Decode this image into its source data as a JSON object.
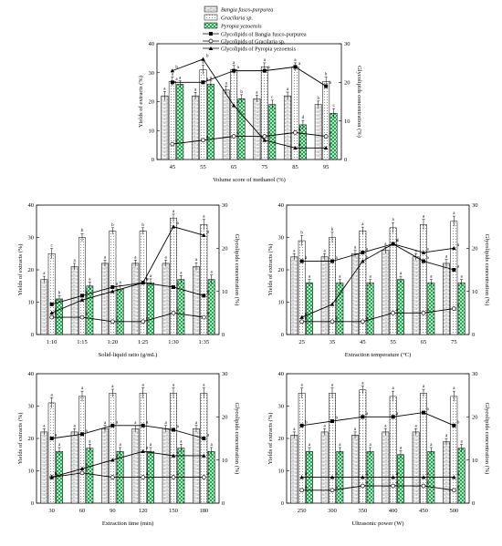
{
  "figure": {
    "legend": [
      {
        "label": "Bangia fusco-purpurea",
        "kind": "bar",
        "pattern": "brick"
      },
      {
        "label": "Gracilaria sp.",
        "kind": "bar",
        "pattern": "dots"
      },
      {
        "label": "Pyropia yezoensis",
        "kind": "bar",
        "pattern": "green-check"
      },
      {
        "label": "Glycolipids of Bangia fusco-purpurea",
        "kind": "line",
        "marker": "square"
      },
      {
        "label": "Glycolipids of Gracilaria sp.",
        "kind": "line",
        "marker": "circle"
      },
      {
        "label": "Glycolipids of Pyropia yezoensis",
        "kind": "line",
        "marker": "triangle"
      }
    ],
    "colors": {
      "bar_brick": "#ffffff",
      "bar_dots": "#ffffff",
      "bar_green": "#1aa84c",
      "line": "#000000",
      "axis": "#000000"
    }
  },
  "chart_data": [
    {
      "type": "bar",
      "panel": "methanol",
      "categories": [
        "45",
        "55",
        "65",
        "75",
        "85",
        "95"
      ],
      "xlabel": "Volume score of methanol (%)",
      "ylabel": "Yields of extracts (%)",
      "y2label": "Glycolipids concentration (%)",
      "ylim": [
        0,
        40
      ],
      "y2lim": [
        0,
        30
      ],
      "series": [
        {
          "name": "Bangia fusco-purpurea",
          "axis": "left",
          "kind": "bar",
          "values": [
            22,
            22,
            24,
            21,
            22,
            19
          ],
          "errors": [
            1.5,
            1.2,
            1.4,
            1.2,
            1.3,
            1.2
          ],
          "labels": [
            "a",
            "a",
            "a",
            "a",
            "a",
            "b"
          ]
        },
        {
          "name": "Gracilaria sp.",
          "axis": "left",
          "kind": "bar",
          "values": [
            27,
            31,
            31,
            32,
            32,
            27
          ],
          "errors": [
            1.5,
            1.6,
            1.5,
            1.4,
            1.4,
            1.5
          ],
          "labels": [
            "a",
            "a",
            "a",
            "a",
            "a",
            "b"
          ]
        },
        {
          "name": "Pyropia yezoensis",
          "axis": "left",
          "kind": "bar",
          "values": [
            26,
            26,
            21,
            19,
            12,
            16
          ],
          "errors": [
            1.2,
            1.2,
            1.4,
            1.5,
            1.5,
            1.6
          ],
          "labels": [
            "a",
            "a",
            "b",
            "c",
            "d",
            "c"
          ]
        },
        {
          "name": "Glycolipids of Bangia fusco-purpurea",
          "axis": "right",
          "kind": "line",
          "marker": "square",
          "values": [
            20,
            20,
            23,
            23,
            24,
            19
          ],
          "labels": [
            "a",
            "a",
            "a",
            "a",
            "a",
            "b"
          ]
        },
        {
          "name": "Glycolipids of Gracilaria sp.",
          "axis": "right",
          "kind": "line",
          "marker": "circle",
          "values": [
            4,
            5,
            6,
            6,
            7,
            6
          ],
          "labels": [
            "a",
            "a",
            "a",
            "a",
            "a",
            "a"
          ]
        },
        {
          "name": "Glycolipids of Pyropia yezoensis",
          "axis": "right",
          "kind": "line",
          "marker": "triangle",
          "values": [
            23,
            26,
            14,
            5,
            3,
            3
          ],
          "labels": [
            "b",
            "b",
            "c",
            "d",
            "e",
            "e"
          ]
        }
      ]
    },
    {
      "type": "bar",
      "panel": "ratio",
      "categories": [
        "1:10",
        "1:15",
        "1:20",
        "1:25",
        "1:30",
        "1:35"
      ],
      "xlabel": "Solid-liquid ratio (g/mL)",
      "ylabel": "Yields of extracts (%)",
      "y2label": "Glycolipids concentration (%)",
      "ylim": [
        0,
        40
      ],
      "y2lim": [
        0,
        30
      ],
      "series": [
        {
          "name": "Bangia fusco-purpurea",
          "axis": "left",
          "kind": "bar",
          "values": [
            17,
            21,
            22,
            22,
            22,
            21
          ],
          "errors": [
            1.0,
            1.0,
            1.0,
            1.0,
            1.0,
            1.2
          ],
          "labels": [
            "a",
            "a",
            "a",
            "a",
            "a",
            "a"
          ]
        },
        {
          "name": "Gracilaria sp.",
          "axis": "left",
          "kind": "bar",
          "values": [
            25,
            30,
            32,
            32,
            36,
            34
          ],
          "errors": [
            1.6,
            1.2,
            1.0,
            1.0,
            1.2,
            1.6
          ],
          "labels": [
            "c",
            "b",
            "b",
            "b",
            "a",
            "a"
          ]
        },
        {
          "name": "Pyropia yezoensis",
          "axis": "left",
          "kind": "bar",
          "values": [
            11,
            15,
            14,
            16,
            17,
            17
          ],
          "errors": [
            1.0,
            1.2,
            1.2,
            1.2,
            1.2,
            1.4
          ],
          "labels": [
            "b",
            "a",
            "a",
            "a",
            "a",
            "a"
          ]
        },
        {
          "name": "Glycolipids of Bangia fusco-purpurea",
          "axis": "right",
          "kind": "line",
          "marker": "square",
          "values": [
            7,
            9,
            11,
            12,
            11,
            9
          ],
          "labels": [
            "c",
            "b",
            "a",
            "a",
            "a",
            "b"
          ]
        },
        {
          "name": "Glycolipids of Gracilaria sp.",
          "axis": "right",
          "kind": "line",
          "marker": "circle",
          "values": [
            4,
            4,
            3,
            3,
            5,
            4
          ],
          "labels": [
            "b",
            "b",
            "c",
            "c",
            "a",
            "b"
          ]
        },
        {
          "name": "Glycolipids of Pyropia yezoensis",
          "axis": "right",
          "kind": "line",
          "marker": "triangle",
          "values": [
            5,
            8,
            10,
            12,
            25,
            23
          ],
          "labels": [
            "c",
            "c",
            "c",
            "b",
            "a",
            "a"
          ]
        }
      ]
    },
    {
      "type": "bar",
      "panel": "temperature",
      "categories": [
        "25",
        "35",
        "45",
        "55",
        "65",
        "75"
      ],
      "xlabel": "Extraction temperature (°C)",
      "ylabel": "Yields of extracts (%)",
      "y2label": "Glycolipids concentration (%)",
      "ylim": [
        0,
        40
      ],
      "y2lim": [
        0,
        30
      ],
      "series": [
        {
          "name": "Bangia fusco-purpurea",
          "axis": "left",
          "kind": "bar",
          "values": [
            24,
            24,
            25,
            26,
            24,
            22
          ],
          "errors": [
            1.0,
            1.0,
            1.0,
            1.0,
            1.0,
            1.2
          ],
          "labels": [
            "a",
            "a",
            "a",
            "a",
            "a",
            "a"
          ]
        },
        {
          "name": "Gracilaria sp.",
          "axis": "left",
          "kind": "bar",
          "values": [
            29,
            30,
            32,
            33,
            34,
            35
          ],
          "errors": [
            1.6,
            1.6,
            1.2,
            1.6,
            1.6,
            1.6
          ],
          "labels": [
            "b",
            "b",
            "a",
            "a",
            "a",
            "a"
          ]
        },
        {
          "name": "Pyropia yezoensis",
          "axis": "left",
          "kind": "bar",
          "values": [
            16,
            16,
            16,
            17,
            16,
            16
          ],
          "errors": [
            1.0,
            1.0,
            1.0,
            1.0,
            1.0,
            1.0
          ],
          "labels": [
            "a",
            "a",
            "a",
            "a",
            "a",
            "a"
          ]
        },
        {
          "name": "Glycolipids of Bangia fusco-purpurea",
          "axis": "right",
          "kind": "line",
          "marker": "square",
          "values": [
            17,
            17,
            19,
            21,
            17,
            15
          ],
          "labels": [
            "a",
            "a",
            "a",
            "a",
            "a",
            "a"
          ]
        },
        {
          "name": "Glycolipids of Gracilaria sp.",
          "axis": "right",
          "kind": "line",
          "marker": "circle",
          "values": [
            3,
            3,
            3,
            5,
            5,
            6
          ],
          "labels": [
            "b",
            "b",
            "b",
            "a",
            "a",
            "a"
          ]
        },
        {
          "name": "Glycolipids of Pyropia yezoensis",
          "axis": "right",
          "kind": "line",
          "marker": "triangle",
          "values": [
            4,
            7,
            17,
            21,
            19,
            20
          ],
          "labels": [
            "e",
            "c",
            "b",
            "d",
            "a",
            "a"
          ]
        }
      ]
    },
    {
      "type": "bar",
      "panel": "time",
      "categories": [
        "30",
        "60",
        "90",
        "120",
        "150",
        "180"
      ],
      "xlabel": "Extraction time (min)",
      "ylabel": "Yields of extracts (%)",
      "y2label": "Glycolipids concentration (%)",
      "ylim": [
        0,
        40
      ],
      "y2lim": [
        0,
        30
      ],
      "series": [
        {
          "name": "Bangia fusco-purpurea",
          "axis": "left",
          "kind": "bar",
          "values": [
            22,
            22,
            23,
            23,
            23,
            23
          ],
          "errors": [
            1.0,
            1.0,
            1.0,
            1.0,
            1.0,
            1.0
          ],
          "labels": [
            "a",
            "a",
            "a",
            "a",
            "a",
            "a"
          ]
        },
        {
          "name": "Gracilaria sp.",
          "axis": "left",
          "kind": "bar",
          "values": [
            31,
            33,
            34,
            34,
            34,
            34
          ],
          "errors": [
            1.6,
            1.6,
            1.2,
            1.6,
            1.6,
            1.6
          ],
          "labels": [
            "a",
            "a",
            "a",
            "a",
            "a",
            "a"
          ]
        },
        {
          "name": "Pyropia yezoensis",
          "axis": "left",
          "kind": "bar",
          "values": [
            16,
            17,
            16,
            16,
            17,
            16
          ],
          "errors": [
            1.2,
            1.2,
            1.2,
            1.2,
            1.2,
            1.2
          ],
          "labels": [
            "a",
            "a",
            "a",
            "a",
            "a",
            "a"
          ]
        },
        {
          "name": "Glycolipids of Bangia fusco-purpurea",
          "axis": "right",
          "kind": "line",
          "marker": "square",
          "values": [
            15,
            16,
            18,
            18,
            17,
            15
          ],
          "labels": [
            "a",
            "a",
            "a",
            "a",
            "a",
            "a"
          ]
        },
        {
          "name": "Glycolipids of Gracilaria sp.",
          "axis": "right",
          "kind": "line",
          "marker": "circle",
          "values": [
            6,
            7,
            6,
            6,
            6,
            6
          ],
          "labels": [
            "a",
            "a",
            "a",
            "a",
            "a",
            "a"
          ]
        },
        {
          "name": "Glycolipids of Pyropia yezoensis",
          "axis": "right",
          "kind": "line",
          "marker": "triangle",
          "values": [
            6,
            8,
            10,
            12,
            11,
            11
          ],
          "labels": [
            "b",
            "b",
            "a",
            "a",
            "a",
            "a"
          ]
        }
      ]
    },
    {
      "type": "bar",
      "panel": "power",
      "categories": [
        "250",
        "300",
        "350",
        "400",
        "450",
        "500"
      ],
      "xlabel": "Ultrasonic power (W)",
      "ylabel": "Yields of extracts (%)",
      "y2label": "Glycolipids concentration (%)",
      "ylim": [
        0,
        40
      ],
      "y2lim": [
        0,
        30
      ],
      "series": [
        {
          "name": "Bangia fusco-purpurea",
          "axis": "left",
          "kind": "bar",
          "values": [
            21,
            22,
            21,
            22,
            22,
            19
          ],
          "errors": [
            1.0,
            1.0,
            1.0,
            1.0,
            1.0,
            1.0
          ],
          "labels": [
            "a",
            "a",
            "a",
            "a",
            "a",
            "a"
          ]
        },
        {
          "name": "Gracilaria sp.",
          "axis": "left",
          "kind": "bar",
          "values": [
            34,
            34,
            35,
            33,
            34,
            33
          ],
          "errors": [
            1.6,
            1.6,
            1.2,
            1.6,
            1.2,
            1.6
          ],
          "labels": [
            "a",
            "a",
            "a",
            "a",
            "a",
            "a"
          ]
        },
        {
          "name": "Pyropia yezoensis",
          "axis": "left",
          "kind": "bar",
          "values": [
            16,
            16,
            16,
            15,
            16,
            17
          ],
          "errors": [
            1.2,
            1.2,
            1.2,
            1.2,
            1.2,
            1.2
          ],
          "labels": [
            "a",
            "a",
            "a",
            "a",
            "a",
            "a"
          ]
        },
        {
          "name": "Glycolipids of Bangia fusco-purpurea",
          "axis": "right",
          "kind": "line",
          "marker": "square",
          "values": [
            18,
            19,
            20,
            20,
            21,
            18
          ],
          "labels": [
            "b",
            "b",
            "a",
            "a",
            "a",
            "b"
          ]
        },
        {
          "name": "Glycolipids of Gracilaria sp.",
          "axis": "right",
          "kind": "line",
          "marker": "circle",
          "values": [
            3,
            3,
            4,
            4,
            4,
            3
          ],
          "labels": [
            "a",
            "a",
            "a",
            "a",
            "a",
            "a"
          ]
        },
        {
          "name": "Glycolipids of Pyropia yezoensis",
          "axis": "right",
          "kind": "line",
          "marker": "triangle",
          "values": [
            6,
            6,
            6,
            6,
            6,
            6
          ],
          "labels": [
            "a",
            "a",
            "a",
            "a",
            "a",
            "a"
          ]
        }
      ]
    }
  ]
}
